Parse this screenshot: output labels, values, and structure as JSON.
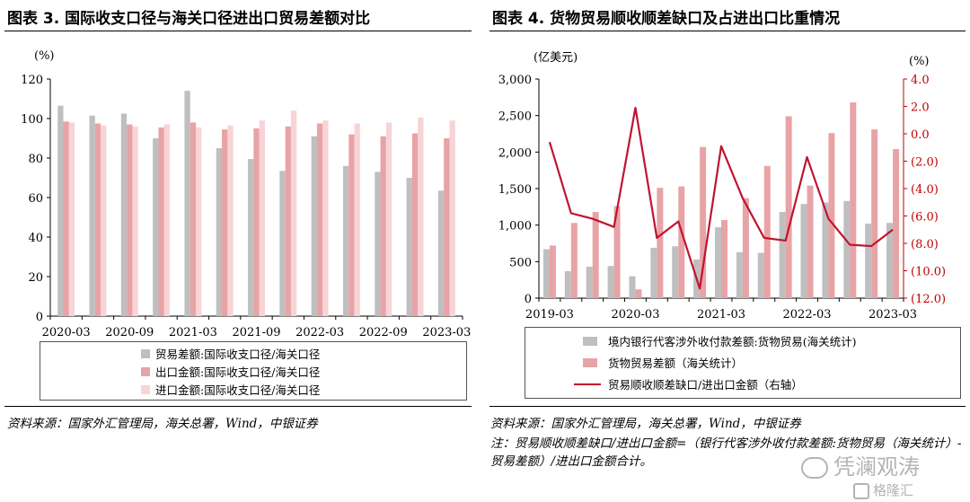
{
  "colors": {
    "grey": "#bfbfbf",
    "pink": "#e8a3a6",
    "light_pink": "#f7d4d6",
    "red_line": "#c0142f",
    "red_axis": "#c00000"
  },
  "left": {
    "title": "图表 3. 国际收支口径与海关口径进出口贸易差额对比",
    "source": "资料来源：国家外汇管理局，海关总署，Wind，中银证券"
  },
  "right": {
    "title": "图表 4. 货物贸易顺收顺差缺口及占进出口比重情况",
    "source": "资料来源：国家外汇管理局，海关总署，Wind，中银证券",
    "note": "注：贸易顺收顺差缺口/进出口金额=（银行代客涉外收付款差额:货物贸易（海关统计）-贸易差额）/进出口金额合计。"
  },
  "watermark": {
    "text1": "凭澜观涛",
    "text2": "格隆汇"
  },
  "chart_data": [
    {
      "type": "bar",
      "unit": "(%)",
      "categories": [
        "2020-03",
        "2020-06",
        "2020-09",
        "2020-12",
        "2021-03",
        "2021-06",
        "2021-09",
        "2021-12",
        "2022-03",
        "2022-06",
        "2022-09",
        "2022-12",
        "2023-03"
      ],
      "x_tick_labels": [
        "2020-03",
        "2020-09",
        "2021-03",
        "2021-09",
        "2022-03",
        "2022-09",
        "2023-03"
      ],
      "ylim": [
        0,
        120
      ],
      "yticks": [
        0,
        20,
        40,
        60,
        80,
        100,
        120
      ],
      "series": [
        {
          "name": "贸易差额:国际收支口径/海关口径",
          "color": "#bfbfbf",
          "values": [
            106.5,
            101.5,
            102.5,
            90,
            114,
            85,
            79.5,
            73.5,
            91,
            76,
            73,
            70,
            63.5
          ]
        },
        {
          "name": "出口金额:国际收支口径/海关口径",
          "color": "#e8a3a6",
          "values": [
            98.5,
            97.5,
            97,
            95.5,
            98,
            94.5,
            95,
            96,
            97.5,
            92,
            91,
            92.5,
            90
          ]
        },
        {
          "name": "进口金额:国际收支口径/海关口径",
          "color": "#f7d4d6",
          "values": [
            98,
            96.5,
            96,
            97,
            95.5,
            96.5,
            99,
            104,
            99,
            97.5,
            98,
            100.5,
            99
          ]
        }
      ]
    },
    {
      "type": "bar+line",
      "left_unit": "(亿美元)",
      "right_unit": "(%)",
      "categories": [
        "2019-03",
        "2019-06",
        "2019-09",
        "2019-12",
        "2020-03",
        "2020-06",
        "2020-09",
        "2020-12",
        "2021-03",
        "2021-06",
        "2021-09",
        "2021-12",
        "2022-03",
        "2022-06",
        "2022-09",
        "2022-12",
        "2023-03"
      ],
      "x_tick_labels": [
        "2019-03",
        "2020-03",
        "2021-03",
        "2022-03",
        "2023-03"
      ],
      "y_left_lim": [
        0,
        3000
      ],
      "y_left_ticks": [
        0,
        500,
        1000,
        1500,
        2000,
        2500,
        3000
      ],
      "y_left_tick_labels": [
        "0",
        "500",
        "1,000",
        "1,500",
        "2,000",
        "2,500",
        "3,000"
      ],
      "y_right_lim": [
        -12,
        4
      ],
      "y_right_ticks": [
        4,
        2,
        0,
        -2,
        -4,
        -6,
        -8,
        -10,
        -12
      ],
      "y_right_tick_labels": [
        "4.0",
        "2.0",
        "0.0",
        "(2.0)",
        "(4.0)",
        "(6.0)",
        "(8.0)",
        "(10.0)",
        "(12.0)"
      ],
      "series": [
        {
          "name": "境内银行代客涉外收付款差额:货物贸易(海关统计)",
          "type": "bar",
          "axis": "left",
          "color": "#bfbfbf",
          "values": [
            670,
            370,
            430,
            440,
            300,
            690,
            710,
            530,
            970,
            630,
            620,
            1180,
            1290,
            1310,
            1330,
            1020,
            1030
          ]
        },
        {
          "name": "货物贸易差额（海关统计）",
          "type": "bar",
          "axis": "left",
          "color": "#e8a3a6",
          "values": [
            720,
            1030,
            1180,
            1260,
            120,
            1510,
            1530,
            2070,
            1070,
            1370,
            1810,
            2490,
            1540,
            2260,
            2680,
            2310,
            2040
          ]
        },
        {
          "name": "贸易顺收顺差缺口/进出口金额（右轴）",
          "type": "line",
          "axis": "right",
          "color": "#c0142f",
          "values": [
            -0.6,
            -5.8,
            -6.2,
            -6.8,
            1.9,
            -7.6,
            -6.4,
            -11.3,
            -0.9,
            -4.7,
            -7.6,
            -7.8,
            -1.7,
            -6.2,
            -8.1,
            -8.2,
            -7.0
          ]
        }
      ]
    }
  ]
}
